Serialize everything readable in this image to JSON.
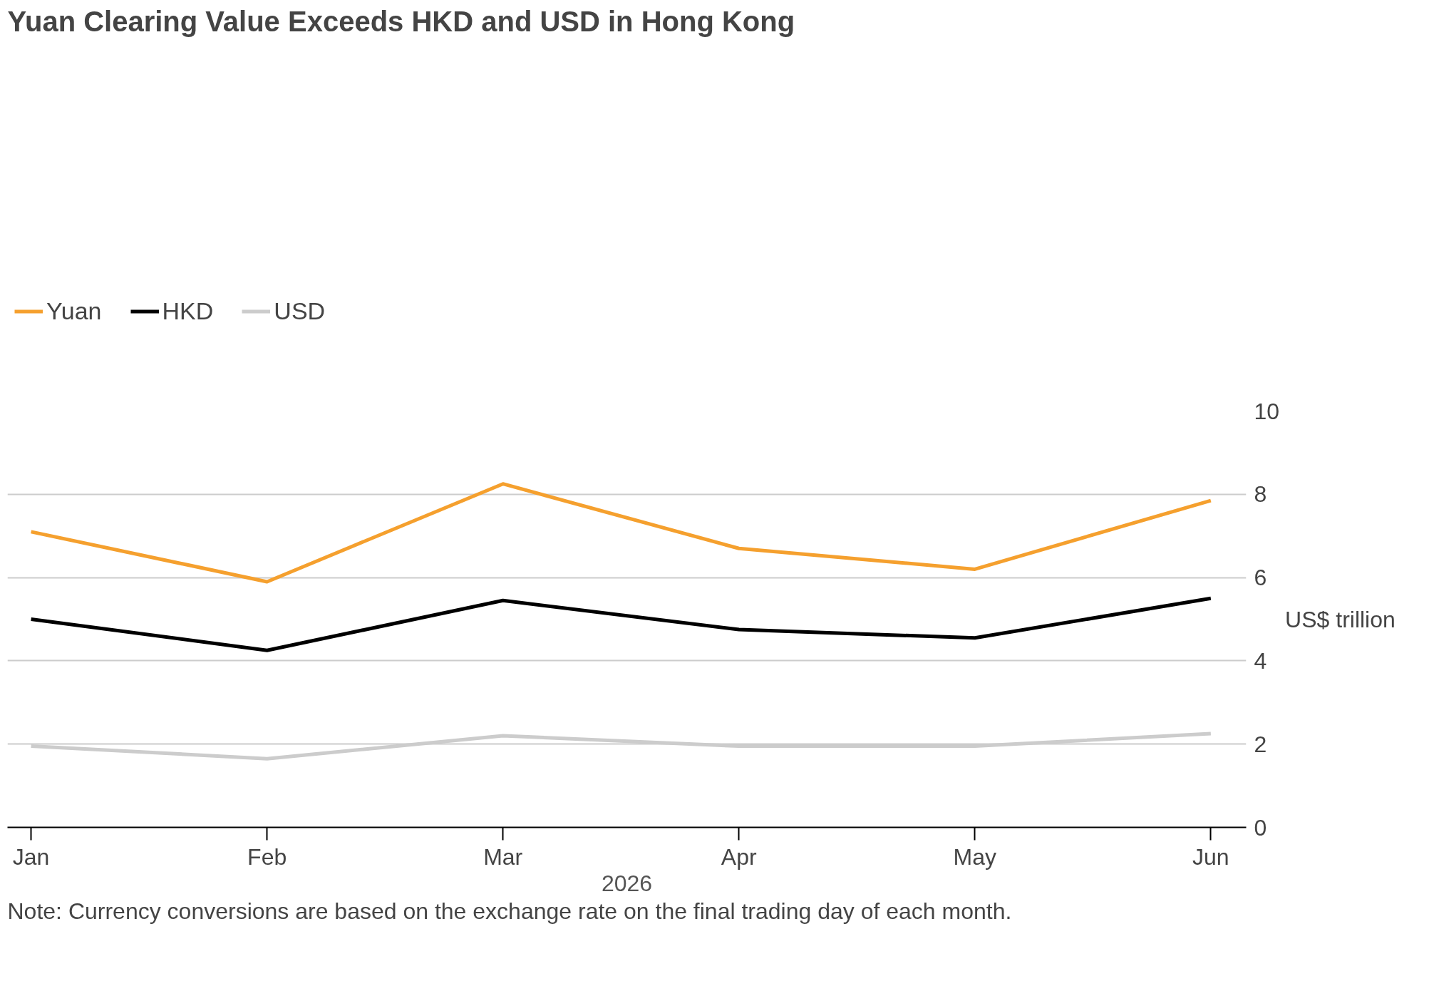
{
  "chart_data": {
    "type": "line",
    "title": "Yuan Clearing Value Exceeds HKD and USD in Hong Kong",
    "categories": [
      "Jan",
      "Feb",
      "Mar",
      "Apr",
      "May",
      "Jun"
    ],
    "xlabel": "2026",
    "ylabel": "US$ trillion",
    "series": [
      {
        "name": "Yuan",
        "color": "#f5a02e",
        "values": [
          7.1,
          5.9,
          8.25,
          6.7,
          6.2,
          7.85
        ]
      },
      {
        "name": "HKD",
        "color": "#000000",
        "values": [
          5.0,
          4.25,
          5.45,
          4.75,
          4.55,
          5.5
        ]
      },
      {
        "name": "USD",
        "color": "#cccccc",
        "values": [
          1.95,
          1.65,
          2.2,
          1.95,
          1.95,
          2.25
        ]
      }
    ],
    "ylim": [
      0,
      10
    ],
    "yticks": [
      0,
      2,
      4,
      6,
      8,
      10
    ],
    "grid": "y",
    "legend": "top left",
    "marker": "none",
    "line_style": "solid",
    "annotations": [
      "Note: Currency conversions are based on the exchange rate on the final trading day of each month."
    ]
  }
}
